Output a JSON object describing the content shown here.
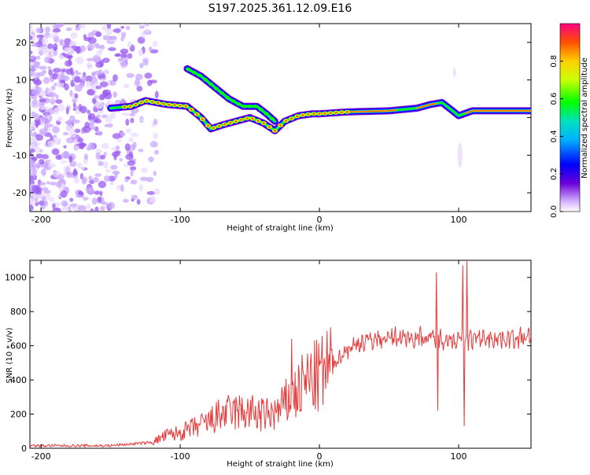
{
  "title": "S197.2025.361.12.09.E16",
  "chart_data": [
    {
      "type": "heatmap",
      "xlabel": "Height of straight line (km)",
      "ylabel": "Frequency (Hz)",
      "xlim": [
        -208,
        152
      ],
      "ylim": [
        -25,
        25
      ],
      "xticks": [
        -200,
        -100,
        0,
        100
      ],
      "yticks": [
        -20,
        -10,
        0,
        10,
        20
      ],
      "colorbar": {
        "label": "Normalized spectral amplitude",
        "ticks": [
          0.0,
          0.2,
          0.4,
          0.6,
          0.8
        ],
        "tick_labels": [
          "0.0",
          "0.2",
          "0.4",
          "0.6",
          "0.8"
        ],
        "range": [
          0,
          1
        ]
      },
      "traces": [
        {
          "name": "main-band",
          "points": [
            [
              -150,
              2.5
            ],
            [
              -135,
              3
            ],
            [
              -125,
              4.5
            ],
            [
              -110,
              3.5
            ],
            [
              -95,
              3
            ],
            [
              -85,
              0
            ],
            [
              -78,
              -3
            ],
            [
              -70,
              -2
            ],
            [
              -60,
              -1
            ],
            [
              -50,
              0
            ],
            [
              -40,
              -1.5
            ],
            [
              -32,
              -3.5
            ],
            [
              -25,
              -1
            ],
            [
              -15,
              0.5
            ],
            [
              -5,
              1
            ],
            [
              0,
              1
            ],
            [
              20,
              1.5
            ],
            [
              50,
              1.8
            ],
            [
              70,
              2.5
            ],
            [
              80,
              3.5
            ],
            [
              88,
              4
            ],
            [
              95,
              2
            ],
            [
              100,
              0.5
            ],
            [
              110,
              1.8
            ],
            [
              152,
              1.8
            ]
          ]
        },
        {
          "name": "upper-branch",
          "points": [
            [
              -95,
              13
            ],
            [
              -85,
              11
            ],
            [
              -75,
              8
            ],
            [
              -65,
              5
            ],
            [
              -55,
              3
            ],
            [
              -45,
              3
            ],
            [
              -38,
              1
            ],
            [
              -32,
              -1
            ]
          ]
        }
      ]
    },
    {
      "type": "line",
      "xlabel": "Height of straight line (km)",
      "ylabel": "SNR (10 * v/v)",
      "xlim": [
        -208,
        152
      ],
      "ylim": [
        0,
        1100
      ],
      "xticks": [
        -200,
        -100,
        0,
        100
      ],
      "yticks": [
        0,
        200,
        400,
        600,
        800,
        1000
      ],
      "color": "#e83a3a",
      "envelope": [
        [
          -208,
          15
        ],
        [
          -150,
          15
        ],
        [
          -120,
          35
        ],
        [
          -110,
          75
        ],
        [
          -100,
          90
        ],
        [
          -90,
          120
        ],
        [
          -80,
          150
        ],
        [
          -70,
          200
        ],
        [
          -60,
          210
        ],
        [
          -50,
          210
        ],
        [
          -40,
          190
        ],
        [
          -30,
          210
        ],
        [
          -20,
          300
        ],
        [
          -15,
          330
        ],
        [
          -10,
          390
        ],
        [
          0,
          420
        ],
        [
          10,
          500
        ],
        [
          20,
          580
        ],
        [
          30,
          620
        ],
        [
          40,
          640
        ],
        [
          50,
          645
        ],
        [
          60,
          650
        ],
        [
          70,
          650
        ],
        [
          80,
          645
        ],
        [
          90,
          640
        ],
        [
          100,
          635
        ],
        [
          110,
          640
        ],
        [
          120,
          645
        ],
        [
          130,
          645
        ],
        [
          140,
          645
        ],
        [
          152,
          645
        ]
      ],
      "spikes": [
        [
          -20,
          640
        ],
        [
          84,
          1030
        ],
        [
          85,
          220
        ],
        [
          87,
          700
        ],
        [
          103,
          1070
        ],
        [
          104,
          130
        ],
        [
          106,
          1100
        ]
      ]
    }
  ]
}
